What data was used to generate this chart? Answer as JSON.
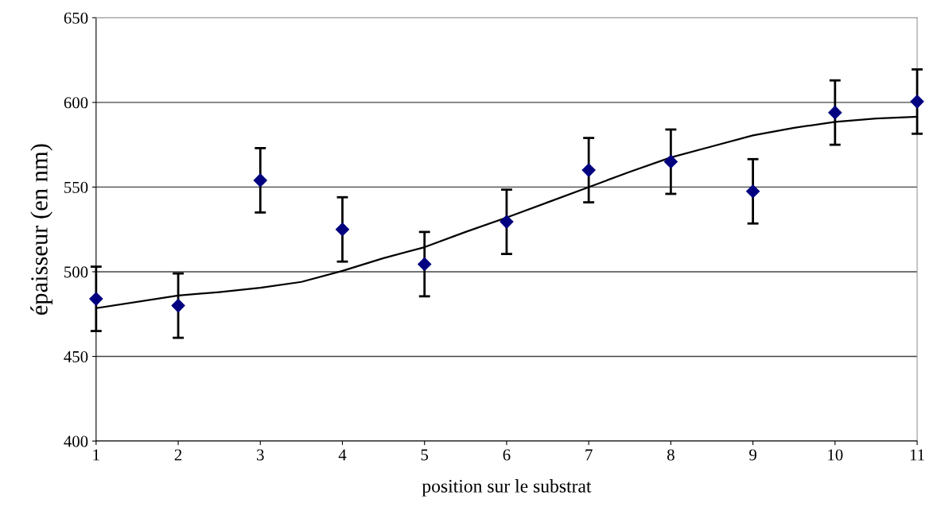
{
  "chart_data": {
    "type": "scatter",
    "xlabel": "position sur le substrat",
    "ylabel": "épaisseur (en nm)",
    "x": [
      1,
      2,
      3,
      4,
      5,
      6,
      7,
      8,
      9,
      10,
      11
    ],
    "series": [
      {
        "color": "#000080",
        "marker": "diamond",
        "values": [
          484,
          480,
          554,
          525,
          504.5,
          529.5,
          560,
          565,
          547.5,
          594,
          600.5
        ],
        "errors": [
          19,
          19,
          19,
          19,
          19,
          19,
          19,
          19,
          19,
          19,
          19
        ]
      },
      {
        "type": "line",
        "color": "#000000",
        "marker": "none",
        "x": [
          1,
          2,
          2.5,
          3,
          3.5,
          4,
          4.5,
          5,
          5.5,
          6,
          6.5,
          7,
          7.5,
          8,
          8.5,
          9,
          9.5,
          10,
          10.5,
          11
        ],
        "values": [
          478.5,
          486,
          488,
          490.5,
          494,
          500.5,
          508,
          514.5,
          523.5,
          532,
          541,
          550,
          559,
          567.5,
          574,
          580.5,
          585,
          588.5,
          590.5,
          591.5
        ]
      }
    ],
    "xlim": [
      1,
      11
    ],
    "xticks": [
      1,
      2,
      3,
      4,
      5,
      6,
      7,
      8,
      9,
      10,
      11
    ],
    "ylim": [
      400,
      650
    ],
    "yticks": [
      400,
      450,
      500,
      550,
      600,
      650
    ],
    "grid": "y",
    "legend": false
  }
}
